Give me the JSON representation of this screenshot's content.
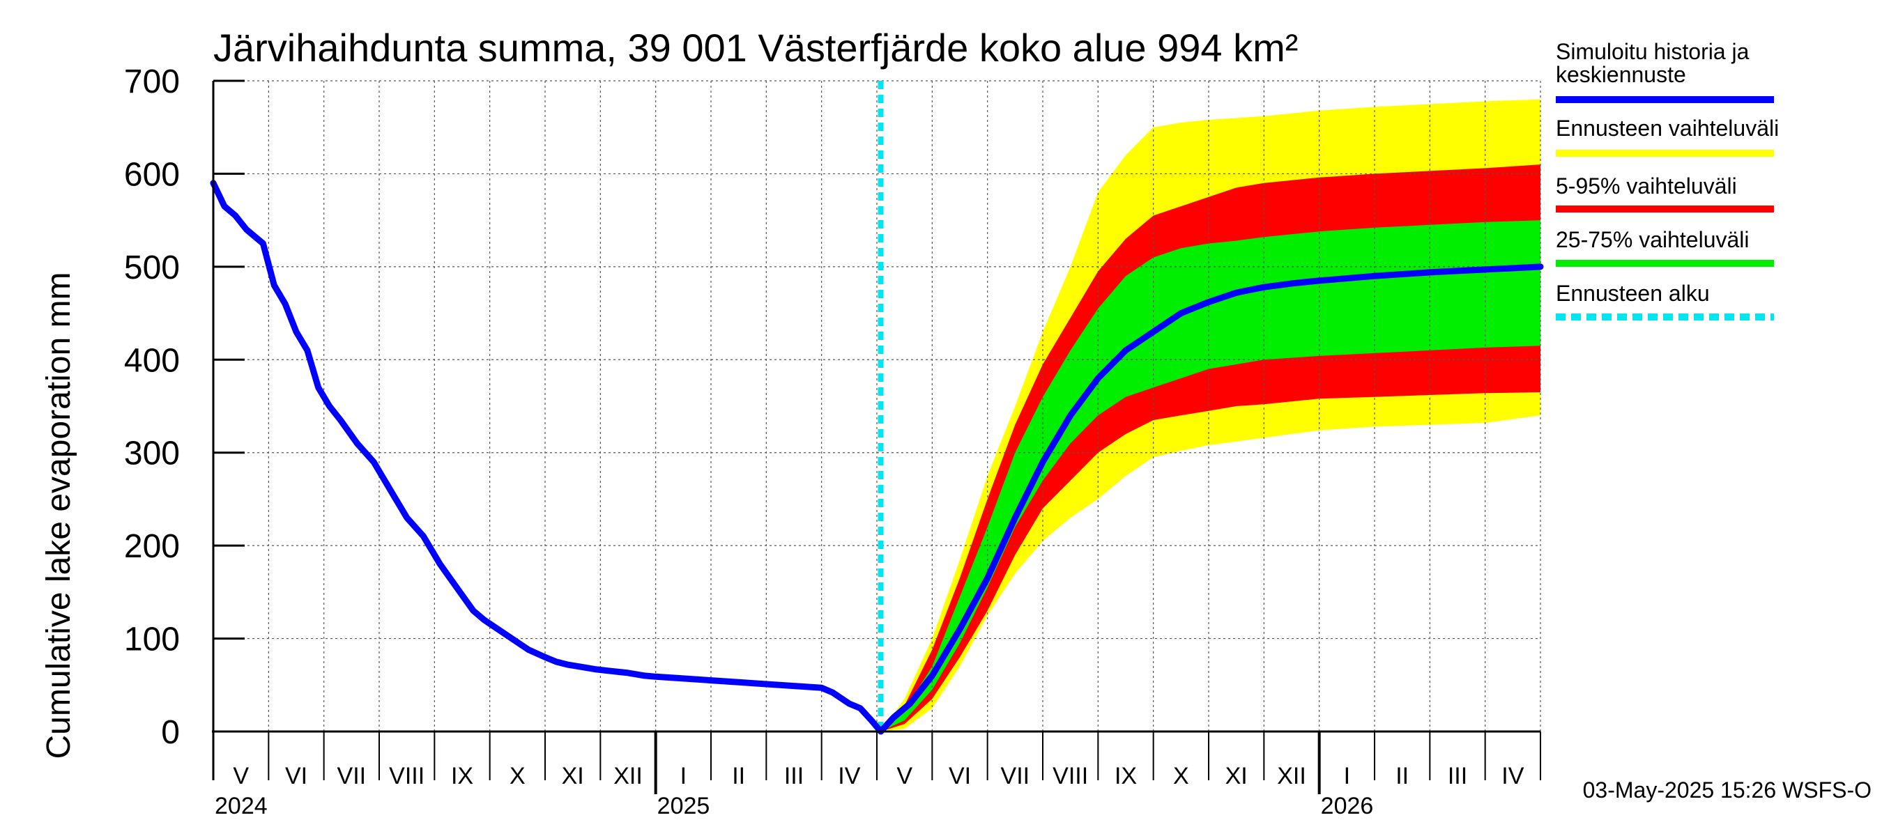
{
  "chart_data": {
    "type": "area",
    "title": "Järvihaihdunta summa, 39 001 Västerfjärde koko alue 994 km²",
    "ylabel": "Cumulative lake evaporation   mm",
    "xlabel": "",
    "ylim": [
      0,
      700
    ],
    "yticks": [
      0,
      100,
      200,
      300,
      400,
      500,
      600,
      700
    ],
    "grid": true,
    "legend_position": "right",
    "x_unit": "months since 2024-04-01",
    "xlim": [
      0,
      24
    ],
    "month_labels": [
      {
        "m": 0.5,
        "label": "V"
      },
      {
        "m": 1.5,
        "label": "VI"
      },
      {
        "m": 2.5,
        "label": "VII"
      },
      {
        "m": 3.5,
        "label": "VIII"
      },
      {
        "m": 4.5,
        "label": "IX"
      },
      {
        "m": 5.5,
        "label": "X"
      },
      {
        "m": 6.5,
        "label": "XI"
      },
      {
        "m": 7.5,
        "label": "XII"
      },
      {
        "m": 8.5,
        "label": "I"
      },
      {
        "m": 9.5,
        "label": "II"
      },
      {
        "m": 10.5,
        "label": "III"
      },
      {
        "m": 11.5,
        "label": "IV"
      },
      {
        "m": 12.5,
        "label": "V"
      },
      {
        "m": 13.5,
        "label": "VI"
      },
      {
        "m": 14.5,
        "label": "VII"
      },
      {
        "m": 15.5,
        "label": "VIII"
      },
      {
        "m": 16.5,
        "label": "IX"
      },
      {
        "m": 17.5,
        "label": "X"
      },
      {
        "m": 18.5,
        "label": "XI"
      },
      {
        "m": 19.5,
        "label": "XII"
      },
      {
        "m": 20.5,
        "label": "I"
      },
      {
        "m": 21.5,
        "label": "II"
      },
      {
        "m": 22.5,
        "label": "III"
      },
      {
        "m": 23.5,
        "label": "IV"
      }
    ],
    "year_labels": [
      {
        "m": 0,
        "label": "2024"
      },
      {
        "m": 8,
        "label": "2025"
      },
      {
        "m": 20,
        "label": "2026"
      }
    ],
    "forecast_start": 12.07,
    "band_x": [
      12.07,
      12.5,
      13,
      13.5,
      14,
      14.5,
      15,
      15.5,
      16,
      16.5,
      17,
      17.5,
      18,
      18.5,
      19,
      19.5,
      20,
      21,
      22,
      23,
      24
    ],
    "bands": [
      {
        "name": "Ennusteen vaihteluväli",
        "color": "#ffff00",
        "lower": [
          0,
          3,
          25,
          70,
          125,
          170,
          205,
          230,
          250,
          275,
          295,
          302,
          308,
          312,
          316,
          320,
          324,
          328,
          330,
          332,
          340
        ],
        "upper": [
          0,
          35,
          100,
          185,
          275,
          350,
          430,
          500,
          580,
          620,
          650,
          655,
          658,
          660,
          662,
          665,
          668,
          672,
          675,
          678,
          680
        ]
      },
      {
        "name": "5-95% vaihteluväli",
        "color": "#ff0000",
        "lower": [
          0,
          8,
          35,
          80,
          130,
          190,
          240,
          270,
          300,
          320,
          335,
          340,
          345,
          350,
          352,
          355,
          358,
          360,
          362,
          364,
          365
        ]
      },
      {
        "name": "25-75% vaihteluväli",
        "color": "#00ee00",
        "lower": [
          0,
          12,
          45,
          95,
          155,
          220,
          270,
          310,
          340,
          360,
          370,
          380,
          390,
          395,
          400,
          402,
          404,
          407,
          410,
          413,
          415
        ],
        "upper": [
          0,
          23,
          70,
          145,
          220,
          300,
          360,
          410,
          455,
          490,
          510,
          520,
          525,
          528,
          532,
          535,
          538,
          542,
          545,
          548,
          550
        ]
      }
    ],
    "red_upper": [
      0,
      28,
      88,
      165,
      250,
      330,
      395,
      445,
      495,
      530,
      555,
      565,
      575,
      585,
      590,
      593,
      596,
      600,
      603,
      606,
      610
    ],
    "series": [
      {
        "name": "Simuloitu historia ja keskiennuste",
        "color": "#0000ff",
        "x": [
          0,
          0.2,
          0.4,
          0.6,
          0.9,
          1.1,
          1.3,
          1.5,
          1.7,
          1.9,
          2.1,
          2.3,
          2.6,
          2.9,
          3.1,
          3.3,
          3.5,
          3.8,
          4.1,
          4.4,
          4.7,
          4.9,
          5.1,
          5.4,
          5.7,
          6.0,
          6.2,
          6.4,
          6.6,
          6.9,
          7.2,
          7.5,
          7.8,
          8.0,
          8.5,
          9,
          9.5,
          10,
          10.5,
          11.0,
          11.2,
          11.5,
          11.7,
          11.9,
          12.07,
          12.3,
          12.6,
          13,
          13.5,
          14,
          14.5,
          15,
          15.5,
          16,
          16.5,
          17,
          17.5,
          18,
          18.5,
          19,
          19.5,
          20,
          21,
          22,
          23,
          24
        ],
        "y": [
          590,
          565,
          555,
          540,
          525,
          480,
          460,
          430,
          410,
          370,
          350,
          335,
          310,
          290,
          270,
          250,
          230,
          210,
          180,
          155,
          130,
          120,
          112,
          100,
          88,
          80,
          75,
          72,
          70,
          67,
          65,
          63,
          60,
          59,
          57,
          55,
          53,
          51,
          49,
          47,
          42,
          30,
          25,
          12,
          0,
          15,
          30,
          60,
          110,
          165,
          230,
          290,
          340,
          380,
          410,
          430,
          450,
          462,
          472,
          478,
          482,
          485,
          490,
          494,
          497,
          500
        ]
      }
    ]
  },
  "legend": {
    "items": [
      {
        "label": "Simuloitu historia ja",
        "label2": "keskiennuste",
        "color": "#0000ff",
        "style": "solid"
      },
      {
        "label": "Ennusteen vaihteluväli",
        "color": "#ffff00",
        "style": "solid"
      },
      {
        "label": "5-95% vaihteluväli",
        "color": "#ff0000",
        "style": "solid"
      },
      {
        "label": "25-75% vaihteluväli",
        "color": "#00ee00",
        "style": "solid"
      },
      {
        "label": "Ennusteen alku",
        "color": "#00e5ee",
        "style": "dashed"
      }
    ]
  },
  "footer": {
    "timestamp": "03-May-2025 15:26 WSFS-O"
  }
}
